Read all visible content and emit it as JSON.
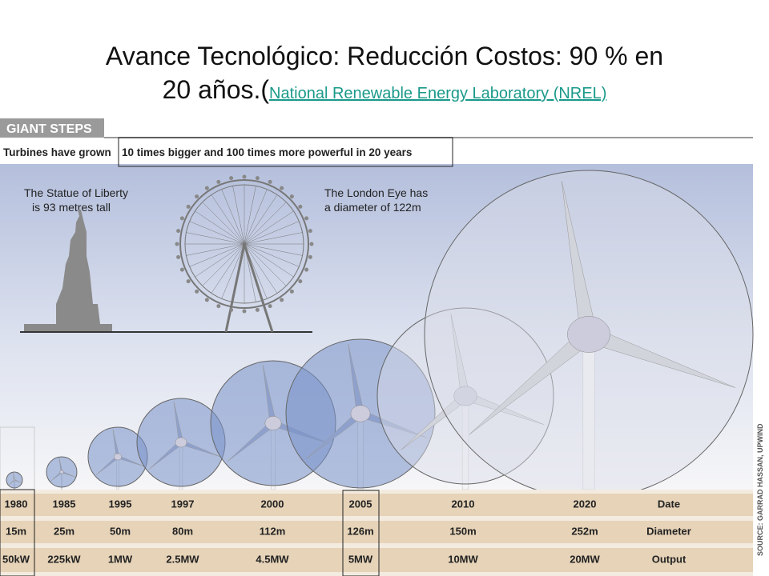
{
  "title_line1": "Avance Tecnológico: Reducción Costos: 90 % en",
  "title_line2": "20 años.(",
  "link": "National Renewable Energy Laboratory (NREL)",
  "infographic": {
    "header": "GIANT STEPS",
    "subtitle_start": "Turbines have grown",
    "subtitle_boxed": "10 times bigger and 100 times more powerful in 20 years",
    "statue_note": [
      "The Statue of Liberty",
      "is 93 metres tall"
    ],
    "eye_note": [
      "The London Eye has",
      "a diameter of 122m"
    ],
    "source": "SOURCE: GARRAD HASSAN, UPWIND"
  },
  "table": {
    "rows": [
      [
        "1980",
        "1985",
        "1995",
        "1997",
        "2000",
        "2005",
        "2010",
        "2020",
        "Date"
      ],
      [
        "15m",
        "25m",
        "50m",
        "80m",
        "112m",
        "126m",
        "150m",
        "252m",
        "Diameter"
      ],
      [
        "50kW",
        "225kW",
        "1MW",
        "2.5MW",
        "4.5MW",
        "5MW",
        "10MW",
        "20MW",
        "Output"
      ]
    ]
  }
}
